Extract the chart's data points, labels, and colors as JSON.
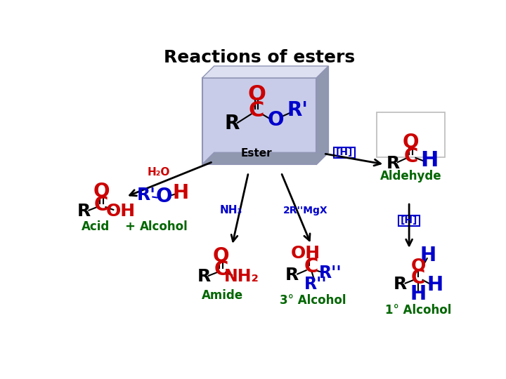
{
  "title": "Reactions of esters",
  "title_fontsize": 18,
  "title_fontweight": "bold",
  "bg_color": "#ffffff",
  "box_face": "#c8cce8",
  "box_bevel_light": "#dde0f0",
  "box_bevel_dark": "#9098b0",
  "ester_label": "Ester",
  "aldehyde_label": "Aldehyde",
  "amide_label": "Amide",
  "acid_label": "Acid",
  "alcohol_label": "Alcohol",
  "plus_label": "+",
  "third_alcohol_label": "3° Alcohol",
  "first_alcohol_label": "1° Alcohol",
  "label_color": "#006600",
  "h2o_label": "H₂O",
  "nh3_label": "NH₃",
  "grignard_label": "2R''MgX",
  "h_label_top": "[H]",
  "h_label_mid": "[H]",
  "red": "#cc0000",
  "blue": "#0000cc",
  "black": "#000000",
  "gray_box": "#cccccc"
}
